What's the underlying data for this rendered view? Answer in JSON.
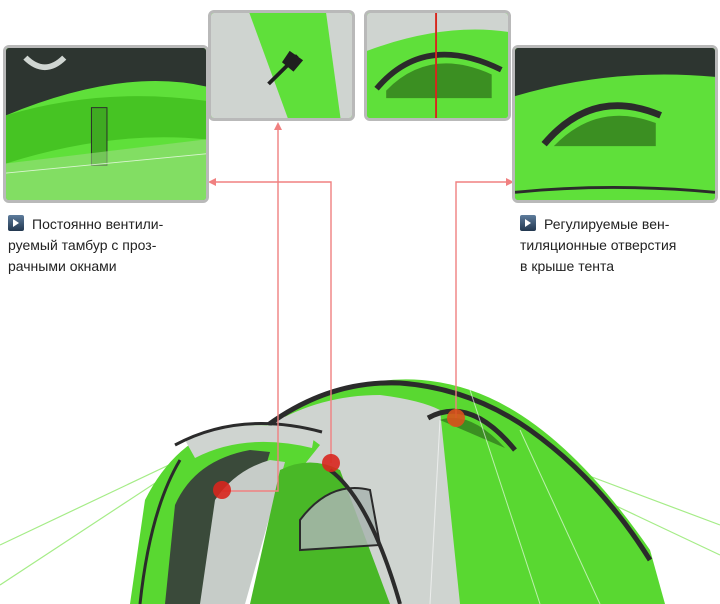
{
  "captions": {
    "left": {
      "lines": [
        "Постоянно вентили-",
        "руемый тамбур с проз-",
        "рачными окнами"
      ]
    },
    "right": {
      "lines": [
        "Регулируемые вен-",
        "тиляционные отверстия",
        "в крыше тента"
      ]
    }
  },
  "colors": {
    "tent_green": "#59d831",
    "tent_grey": "#c9cfcb",
    "frame_border": "#b9b9b9",
    "callout_line": "#f08080",
    "marker": "#d8261e",
    "marker_orange": "#d9531c"
  },
  "icons": {
    "bullet": "play-arrow-icon"
  }
}
